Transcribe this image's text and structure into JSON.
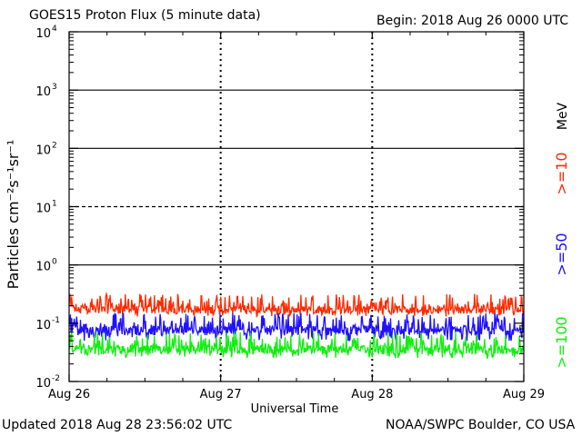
{
  "chart_data": {
    "type": "line",
    "title": "GOES15 Proton Flux (5 minute data)",
    "begin_label": "Begin: 2018 Aug 26 0000 UTC",
    "xlabel": "Universal Time",
    "ylabel": "Particles cm⁻²s⁻¹sr⁻¹",
    "unit_label": "MeV",
    "yscale": "log",
    "ylim": [
      0.01,
      10000
    ],
    "ytick_labels": [
      {
        "value": 0.01,
        "base": "10",
        "exp": "-2"
      },
      {
        "value": 0.1,
        "base": "10",
        "exp": "-1"
      },
      {
        "value": 1,
        "base": "10",
        "exp": "0"
      },
      {
        "value": 10,
        "base": "10",
        "exp": "1"
      },
      {
        "value": 100,
        "base": "10",
        "exp": "2"
      },
      {
        "value": 1000,
        "base": "10",
        "exp": "3"
      },
      {
        "value": 10000,
        "base": "10",
        "exp": "4"
      }
    ],
    "x_categories": [
      "Aug 26",
      "Aug 27",
      "Aug 28",
      "Aug 29"
    ],
    "xlim_days": [
      0,
      3
    ],
    "threshold_lines": [
      {
        "value": 1,
        "style": "solid"
      },
      {
        "value": 10,
        "style": "dashed"
      },
      {
        "value": 100,
        "style": "solid"
      },
      {
        "value": 1000,
        "style": "solid"
      }
    ],
    "series": [
      {
        "name": ">=10",
        "color": "#ff2a00",
        "band": [
          0.13,
          0.32
        ],
        "typical": 0.17
      },
      {
        "name": ">=50",
        "color": "#1f10ff",
        "band": [
          0.05,
          0.15
        ],
        "typical": 0.075
      },
      {
        "name": ">=100",
        "color": "#11ee11",
        "band": [
          0.025,
          0.07
        ],
        "typical": 0.035
      }
    ],
    "grid": false,
    "legend": "right"
  },
  "footer": {
    "updated": "Updated 2018 Aug 28 23:56:02 UTC",
    "source": "NOAA/SWPC Boulder, CO USA"
  }
}
